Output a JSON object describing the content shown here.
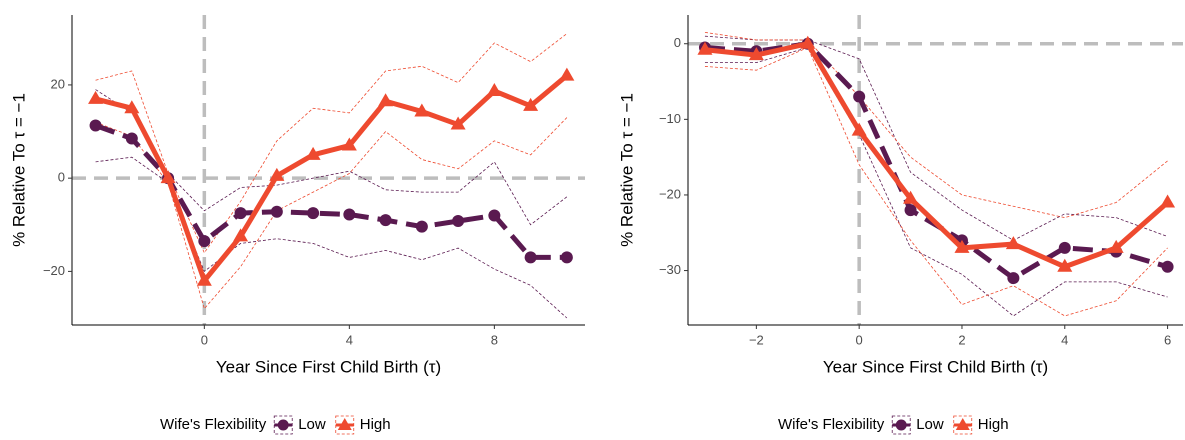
{
  "chart_data": [
    {
      "type": "line",
      "ylabel": "% Relative To τ = −1",
      "xlabel": "Year Since First Child Birth (τ)",
      "x": [
        -3,
        -2,
        -1,
        0,
        1,
        2,
        3,
        4,
        5,
        6,
        7,
        8,
        9,
        10
      ],
      "xlim": [
        -3.65,
        10.5
      ],
      "ylim": [
        -31.5,
        35
      ],
      "xticks": [
        0,
        4,
        8
      ],
      "yticks": [
        {
          "value": -20,
          "label": "−20"
        },
        0,
        20
      ],
      "vline": 0,
      "hline": 0,
      "legend_title": "Wife's Flexibility",
      "series": [
        {
          "name": "Low",
          "color": "#5a1a50",
          "marker": "circle",
          "dashed": true,
          "values": [
            11.3,
            8.5,
            0,
            -13.5,
            -7.5,
            -7.2,
            -7.5,
            -7.8,
            -9,
            -10.4,
            -9.2,
            -8,
            -17,
            -17
          ],
          "lower": [
            3.5,
            4.5,
            -1,
            -20,
            -14,
            -13,
            -14,
            -17,
            -15.5,
            -17.5,
            -15,
            -19.5,
            -23,
            -30
          ],
          "upper": [
            19,
            14,
            1,
            -7,
            -2,
            -1.5,
            0,
            1.5,
            -2.5,
            -3,
            -3,
            3.5,
            -10,
            -4
          ]
        },
        {
          "name": "High",
          "color": "#ee4a2f",
          "marker": "triangle",
          "dashed": false,
          "values": [
            17,
            15,
            0,
            -22,
            -12.5,
            0.5,
            5,
            7,
            16.5,
            14.3,
            11.5,
            18.7,
            15.5,
            22
          ],
          "lower": [
            12,
            9,
            -1,
            -28,
            -19,
            -7,
            -3,
            1,
            10,
            4,
            2,
            8,
            5,
            13
          ],
          "upper": [
            21,
            23,
            1,
            -16,
            -5,
            8,
            15,
            14,
            23,
            24,
            20.5,
            29,
            25,
            31
          ]
        }
      ]
    },
    {
      "type": "line",
      "ylabel": "% Relative To τ = −1",
      "xlabel": "Year Since First Child Birth (τ)",
      "x": [
        -3,
        -2,
        -1,
        0,
        1,
        2,
        3,
        4,
        5,
        6
      ],
      "xlim": [
        -3.33,
        6.3
      ],
      "ylim": [
        -37.2,
        3.8
      ],
      "xticks": [
        {
          "value": -2,
          "label": "−2"
        },
        0,
        2,
        4,
        6
      ],
      "yticks": [
        {
          "value": -30,
          "label": "−30"
        },
        {
          "value": -20,
          "label": "−20"
        },
        {
          "value": -10,
          "label": "−10"
        },
        0
      ],
      "vline": 0,
      "hline": 0,
      "legend_title": "Wife's Flexibility",
      "series": [
        {
          "name": "Low",
          "color": "#5a1a50",
          "marker": "circle",
          "dashed": true,
          "values": [
            -0.5,
            -1,
            0,
            -7,
            -22,
            -26,
            -31,
            -27,
            -27.5,
            -29.5
          ],
          "lower": [
            -2.5,
            -2.5,
            -0.5,
            -12,
            -27,
            -30.5,
            -36,
            -31.5,
            -31.5,
            -33.5
          ],
          "upper": [
            1,
            0.5,
            0.5,
            -2,
            -17,
            -22,
            -26,
            -22.5,
            -23,
            -25.5
          ]
        },
        {
          "name": "High",
          "color": "#ee4a2f",
          "marker": "triangle",
          "dashed": false,
          "values": [
            -0.8,
            -1.5,
            0,
            -11.5,
            -20.5,
            -27,
            -26.5,
            -29.5,
            -27,
            -21
          ],
          "lower": [
            -3,
            -3.5,
            -0.5,
            -16,
            -26,
            -34.5,
            -32,
            -36,
            -34,
            -27
          ],
          "upper": [
            1.5,
            0.5,
            0.5,
            -7,
            -15,
            -20,
            -21.5,
            -23,
            -21,
            -15.5
          ]
        }
      ]
    }
  ]
}
